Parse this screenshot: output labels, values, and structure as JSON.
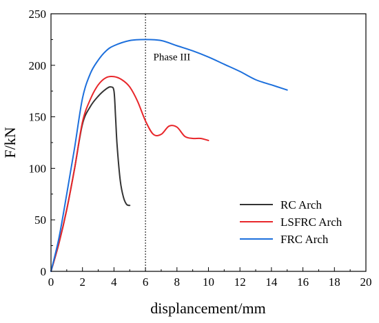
{
  "chart_data": {
    "type": "line",
    "xlabel": "displancement/mm",
    "ylabel": "F/kN",
    "xlim": [
      0,
      20
    ],
    "ylim": [
      0,
      250
    ],
    "x_ticks": [
      "0",
      "2",
      "4",
      "6",
      "8",
      "10",
      "12",
      "14",
      "16",
      "18",
      "20"
    ],
    "y_ticks": [
      "0",
      "50",
      "100",
      "150",
      "200",
      "250"
    ],
    "grid": false,
    "legend_position": "bottom-right",
    "annotations": [
      {
        "text": "Phase III",
        "x": 6.5,
        "y": 205
      }
    ],
    "reference_line": {
      "x": 6,
      "style": "dotted"
    },
    "series": [
      {
        "name": "RC Arch",
        "color": "#333333",
        "points": [
          [
            0,
            0
          ],
          [
            0.5,
            27
          ],
          [
            1,
            60
          ],
          [
            1.5,
            100
          ],
          [
            2,
            143
          ],
          [
            2.5,
            160
          ],
          [
            3,
            170
          ],
          [
            3.5,
            177
          ],
          [
            3.8,
            179
          ],
          [
            4.0,
            175
          ],
          [
            4.1,
            150
          ],
          [
            4.2,
            122
          ],
          [
            4.4,
            88
          ],
          [
            4.6,
            72
          ],
          [
            4.8,
            65
          ],
          [
            5.0,
            64
          ]
        ]
      },
      {
        "name": "LSFRC Arch",
        "color": "#e8262a",
        "points": [
          [
            0,
            0
          ],
          [
            0.5,
            27
          ],
          [
            1,
            60
          ],
          [
            1.5,
            100
          ],
          [
            2,
            145
          ],
          [
            2.5,
            167
          ],
          [
            3,
            181
          ],
          [
            3.5,
            188
          ],
          [
            4,
            189
          ],
          [
            4.5,
            186
          ],
          [
            5,
            179
          ],
          [
            5.5,
            165
          ],
          [
            6,
            146
          ],
          [
            6.5,
            133
          ],
          [
            7,
            133
          ],
          [
            7.5,
            141
          ],
          [
            8,
            140
          ],
          [
            8.5,
            131
          ],
          [
            9,
            129
          ],
          [
            9.5,
            129
          ],
          [
            10,
            127
          ]
        ]
      },
      {
        "name": "FRC Arch",
        "color": "#1c6fdc",
        "points": [
          [
            0,
            0
          ],
          [
            0.5,
            32
          ],
          [
            1,
            75
          ],
          [
            1.5,
            120
          ],
          [
            2,
            168
          ],
          [
            2.5,
            192
          ],
          [
            3,
            205
          ],
          [
            3.5,
            214
          ],
          [
            4,
            219
          ],
          [
            5,
            224
          ],
          [
            6,
            225
          ],
          [
            7,
            224
          ],
          [
            8,
            219
          ],
          [
            9,
            214
          ],
          [
            10,
            208
          ],
          [
            11,
            201
          ],
          [
            12,
            194
          ],
          [
            13,
            186
          ],
          [
            14,
            181
          ],
          [
            15,
            176
          ]
        ]
      }
    ]
  }
}
